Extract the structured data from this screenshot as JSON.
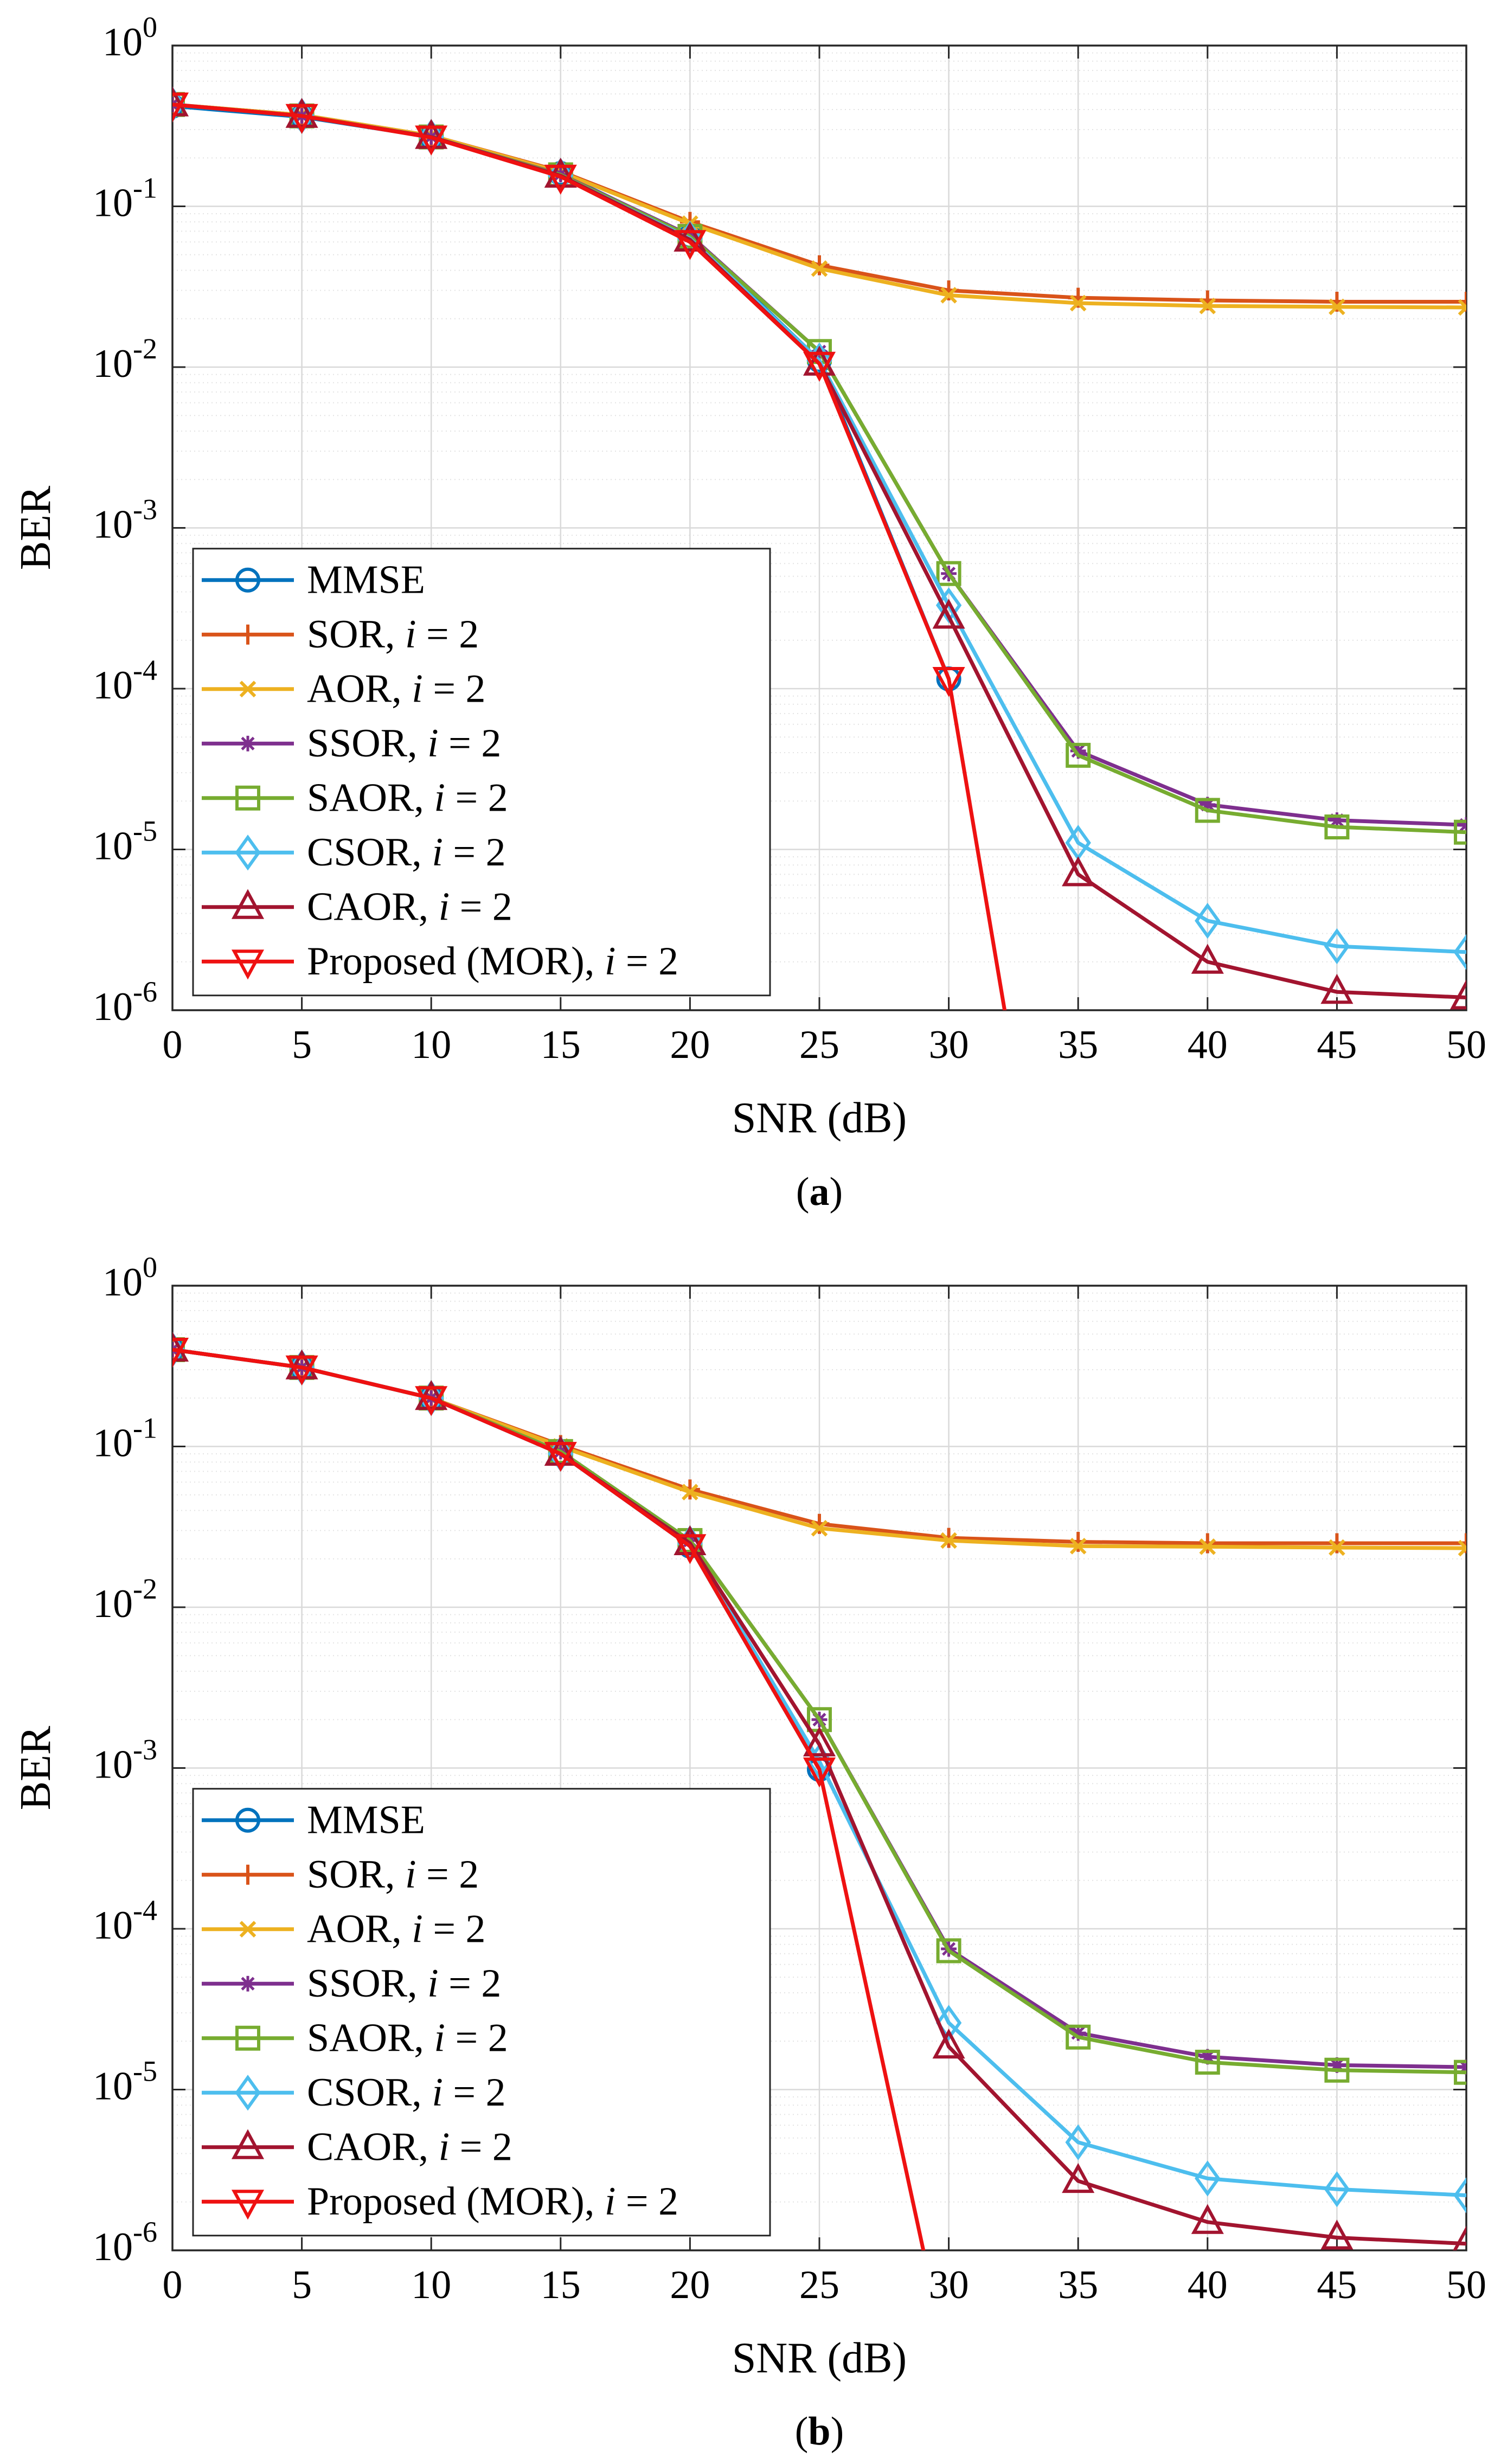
{
  "chart_data": [
    {
      "type": "line",
      "panel_label": "a",
      "xlabel": "SNR (dB)",
      "ylabel": "BER",
      "yscale": "log",
      "xlim": [
        0,
        50
      ],
      "ylim": [
        1e-06,
        1
      ],
      "xticks": [
        "0",
        "5",
        "10",
        "15",
        "20",
        "25",
        "30",
        "35",
        "40",
        "45",
        "50"
      ],
      "yticks": [
        {
          "base": "10",
          "exp": "0"
        },
        {
          "base": "10",
          "exp": "-1"
        },
        {
          "base": "10",
          "exp": "-2"
        },
        {
          "base": "10",
          "exp": "-3"
        },
        {
          "base": "10",
          "exp": "-4"
        },
        {
          "base": "10",
          "exp": "-5"
        },
        {
          "base": "10",
          "exp": "-6"
        }
      ],
      "grid": true,
      "legend_position": "bottom-left",
      "x": [
        0,
        5,
        10,
        15,
        20,
        25,
        30,
        35,
        40,
        45,
        50
      ],
      "series": [
        {
          "name": "MMSE",
          "label": "MMSE",
          "italic": "",
          "suffix": "",
          "marker": "circle",
          "color": "#0072BD",
          "values": [
            0.42,
            0.36,
            0.27,
            0.16,
            0.065,
            0.011,
            0.000115,
            null,
            null,
            null,
            null
          ]
        },
        {
          "name": "SOR, i = 2",
          "label": "SOR, ",
          "italic": "i",
          "suffix": " = 2",
          "marker": "plus",
          "color": "#D95319",
          "values": [
            0.43,
            0.37,
            0.275,
            0.165,
            0.08,
            0.043,
            0.03,
            0.027,
            0.026,
            0.0255,
            0.0255
          ]
        },
        {
          "name": "AOR, i = 2",
          "label": "AOR, ",
          "italic": "i",
          "suffix": " = 2",
          "marker": "x",
          "color": "#EDB120",
          "values": [
            0.43,
            0.37,
            0.275,
            0.163,
            0.078,
            0.041,
            0.028,
            0.025,
            0.024,
            0.0237,
            0.0235
          ]
        },
        {
          "name": "SSOR, i = 2",
          "label": "SSOR, ",
          "italic": "i",
          "suffix": " = 2",
          "marker": "asterisk",
          "color": "#7E2F8E",
          "values": [
            0.43,
            0.365,
            0.27,
            0.158,
            0.066,
            0.0125,
            0.00052,
            4.1e-05,
            1.9e-05,
            1.52e-05,
            1.42e-05
          ]
        },
        {
          "name": "SAOR, i = 2",
          "label": "SAOR, ",
          "italic": "i",
          "suffix": " = 2",
          "marker": "square",
          "color": "#77AC30",
          "values": [
            0.43,
            0.365,
            0.27,
            0.157,
            0.065,
            0.0125,
            0.00052,
            3.85e-05,
            1.75e-05,
            1.38e-05,
            1.28e-05
          ]
        },
        {
          "name": "CSOR, i = 2",
          "label": "CSOR, ",
          "italic": "i",
          "suffix": " = 2",
          "marker": "diamond",
          "color": "#4DBEEE",
          "values": [
            0.43,
            0.365,
            0.27,
            0.155,
            0.063,
            0.011,
            0.00033,
            1.1e-05,
            3.6e-06,
            2.5e-06,
            2.3e-06
          ]
        },
        {
          "name": "CAOR, i = 2",
          "label": "CAOR, ",
          "italic": "i",
          "suffix": " = 2",
          "marker": "triangle-up",
          "color": "#A2142F",
          "values": [
            0.43,
            0.365,
            0.27,
            0.155,
            0.062,
            0.0105,
            0.00028,
            7e-06,
            2e-06,
            1.3e-06,
            1.2e-06
          ]
        },
        {
          "name": "Proposed (MOR), i = 2",
          "label": "Proposed (MOR), ",
          "italic": "i",
          "suffix": " = 2",
          "marker": "triangle-down",
          "color": "#EE1111",
          "values": [
            0.43,
            0.365,
            0.268,
            0.153,
            0.06,
            0.0105,
            0.000115,
            null,
            null,
            null,
            null
          ],
          "tail_to": [
            32.3,
            1e-06
          ]
        }
      ]
    },
    {
      "type": "line",
      "panel_label": "b",
      "xlabel": "SNR (dB)",
      "ylabel": "BER",
      "yscale": "log",
      "xlim": [
        0,
        50
      ],
      "ylim": [
        1e-06,
        1
      ],
      "xticks": [
        "0",
        "5",
        "10",
        "15",
        "20",
        "25",
        "30",
        "35",
        "40",
        "45",
        "50"
      ],
      "yticks": [
        {
          "base": "10",
          "exp": "0"
        },
        {
          "base": "10",
          "exp": "-1"
        },
        {
          "base": "10",
          "exp": "-2"
        },
        {
          "base": "10",
          "exp": "-3"
        },
        {
          "base": "10",
          "exp": "-4"
        },
        {
          "base": "10",
          "exp": "-5"
        },
        {
          "base": "10",
          "exp": "-6"
        }
      ],
      "grid": true,
      "legend_position": "bottom-left",
      "x": [
        0,
        5,
        10,
        15,
        20,
        25,
        30,
        35,
        40,
        45,
        50
      ],
      "series": [
        {
          "name": "MMSE",
          "label": "MMSE",
          "italic": "",
          "suffix": "",
          "marker": "circle",
          "color": "#0072BD",
          "values": [
            0.4,
            0.31,
            0.2,
            0.09,
            0.024,
            0.00098,
            null,
            null,
            null,
            null,
            null
          ]
        },
        {
          "name": "SOR, i = 2",
          "label": "SOR, ",
          "italic": "i",
          "suffix": " = 2",
          "marker": "plus",
          "color": "#D95319",
          "values": [
            0.4,
            0.31,
            0.2,
            0.102,
            0.054,
            0.033,
            0.027,
            0.0255,
            0.025,
            0.025,
            0.025
          ]
        },
        {
          "name": "AOR, i = 2",
          "label": "AOR, ",
          "italic": "i",
          "suffix": " = 2",
          "marker": "x",
          "color": "#EDB120",
          "values": [
            0.4,
            0.31,
            0.2,
            0.1,
            0.052,
            0.031,
            0.026,
            0.024,
            0.0238,
            0.0235,
            0.0233
          ]
        },
        {
          "name": "SSOR, i = 2",
          "label": "SSOR, ",
          "italic": "i",
          "suffix": " = 2",
          "marker": "asterisk",
          "color": "#7E2F8E",
          "values": [
            0.4,
            0.31,
            0.2,
            0.093,
            0.026,
            0.002,
            7.5e-05,
            2.25e-05,
            1.6e-05,
            1.42e-05,
            1.38e-05
          ]
        },
        {
          "name": "SAOR, i = 2",
          "label": "SAOR, ",
          "italic": "i",
          "suffix": " = 2",
          "marker": "square",
          "color": "#77AC30",
          "values": [
            0.4,
            0.31,
            0.2,
            0.093,
            0.026,
            0.002,
            7.3e-05,
            2.12e-05,
            1.48e-05,
            1.32e-05,
            1.28e-05
          ]
        },
        {
          "name": "CSOR, i = 2",
          "label": "CSOR, ",
          "italic": "i",
          "suffix": " = 2",
          "marker": "diamond",
          "color": "#4DBEEE",
          "values": [
            0.4,
            0.31,
            0.2,
            0.09,
            0.025,
            0.0011,
            2.6e-05,
            4.7e-06,
            2.8e-06,
            2.4e-06,
            2.2e-06
          ]
        },
        {
          "name": "CAOR, i = 2",
          "label": "CAOR, ",
          "italic": "i",
          "suffix": " = 2",
          "marker": "triangle-up",
          "color": "#A2142F",
          "values": [
            0.4,
            0.31,
            0.2,
            0.09,
            0.025,
            0.0014,
            1.85e-05,
            2.7e-06,
            1.5e-06,
            1.2e-06,
            1.1e-06
          ]
        },
        {
          "name": "Proposed (MOR), i = 2",
          "label": "Proposed (MOR), ",
          "italic": "i",
          "suffix": " = 2",
          "marker": "triangle-down",
          "color": "#EE1111",
          "values": [
            0.4,
            0.31,
            0.2,
            0.09,
            0.024,
            0.00098,
            null,
            null,
            null,
            null,
            null
          ],
          "tail_to": [
            29.2,
            1e-06
          ]
        }
      ]
    }
  ]
}
